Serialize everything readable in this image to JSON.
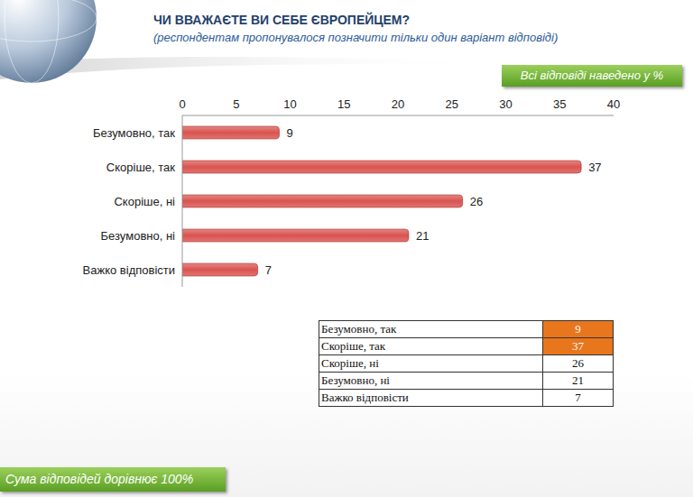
{
  "chart_data": {
    "type": "bar",
    "orientation": "horizontal",
    "title": "ЧИ ВВАЖАЄТЕ ВИ СЕБЕ ЄВРОПЕЙЦЕМ?",
    "subtitle": "(респондентам пропонувалося позначити тільки один варіант відповіді)",
    "categories": [
      "Безумовно, так",
      "Скоріше, так",
      "Скоріше, ні",
      "Безумовно, ні",
      "Важко відповісти"
    ],
    "values": [
      9,
      37,
      26,
      21,
      7
    ],
    "color": "#d9534f",
    "xlim": [
      0,
      40
    ],
    "xticks": [
      0,
      5,
      10,
      15,
      20,
      25,
      30,
      35,
      40
    ],
    "data_labels": true,
    "grid": false,
    "annotations": [
      "Всі відповіді наведено у %",
      "Сума відповідей дорівнює 100%"
    ]
  },
  "table": {
    "rows": [
      [
        "Безумовно, так",
        9
      ],
      [
        "Скоріше, так",
        37
      ],
      [
        "Скоріше, ні",
        26
      ],
      [
        "Безумовно, ні",
        21
      ],
      [
        "Важко відповісти",
        7
      ]
    ]
  }
}
